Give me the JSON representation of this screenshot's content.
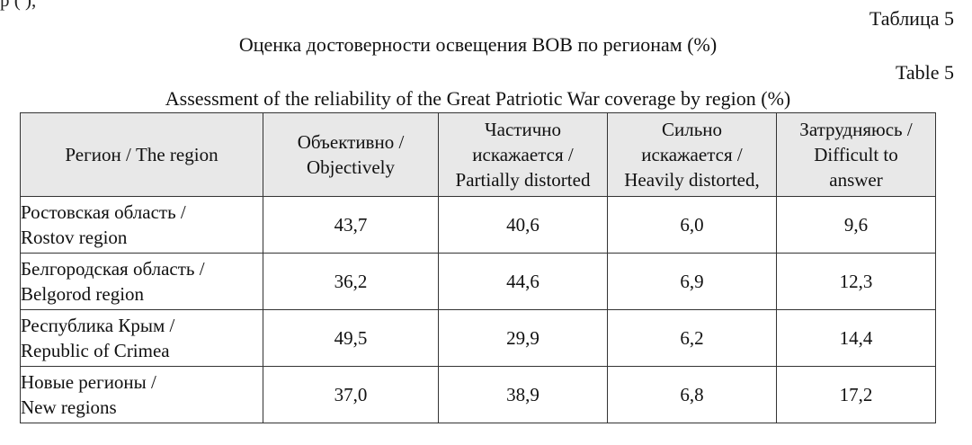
{
  "top_fragment": "р ( ),                              ",
  "labels": {
    "table_ru": "Таблица 5",
    "table_en": "Table 5"
  },
  "titles": {
    "ru": "Оценка достоверности освещения ВОВ по регионам (%)",
    "en": "Assessment of the reliability of the Great Patriotic War coverage by region (%)"
  },
  "table": {
    "headers": [
      [
        "Регион / The region"
      ],
      [
        "Объективно /",
        "Objectively"
      ],
      [
        "Частично",
        "искажается /",
        "Partially distorted"
      ],
      [
        "Сильно",
        "искажается /",
        "Heavily distorted,"
      ],
      [
        "Затрудняюсь /",
        "Difficult to",
        "answer"
      ]
    ],
    "rows": [
      {
        "region": [
          "Ростовская область /",
          "Rostov region"
        ],
        "values": [
          "43,7",
          "40,6",
          "6,0",
          "9,6"
        ]
      },
      {
        "region": [
          "Белгородская область /",
          "Belgorod region"
        ],
        "values": [
          "36,2",
          "44,6",
          "6,9",
          "12,3"
        ]
      },
      {
        "region": [
          "Республика Крым /",
          "Republic of Crimea"
        ],
        "values": [
          "49,5",
          "29,9",
          "6,2",
          "14,4"
        ]
      },
      {
        "region": [
          "Новые регионы /",
          "New regions"
        ],
        "values": [
          "37,0",
          "38,9",
          "6,8",
          "17,2"
        ]
      }
    ]
  }
}
